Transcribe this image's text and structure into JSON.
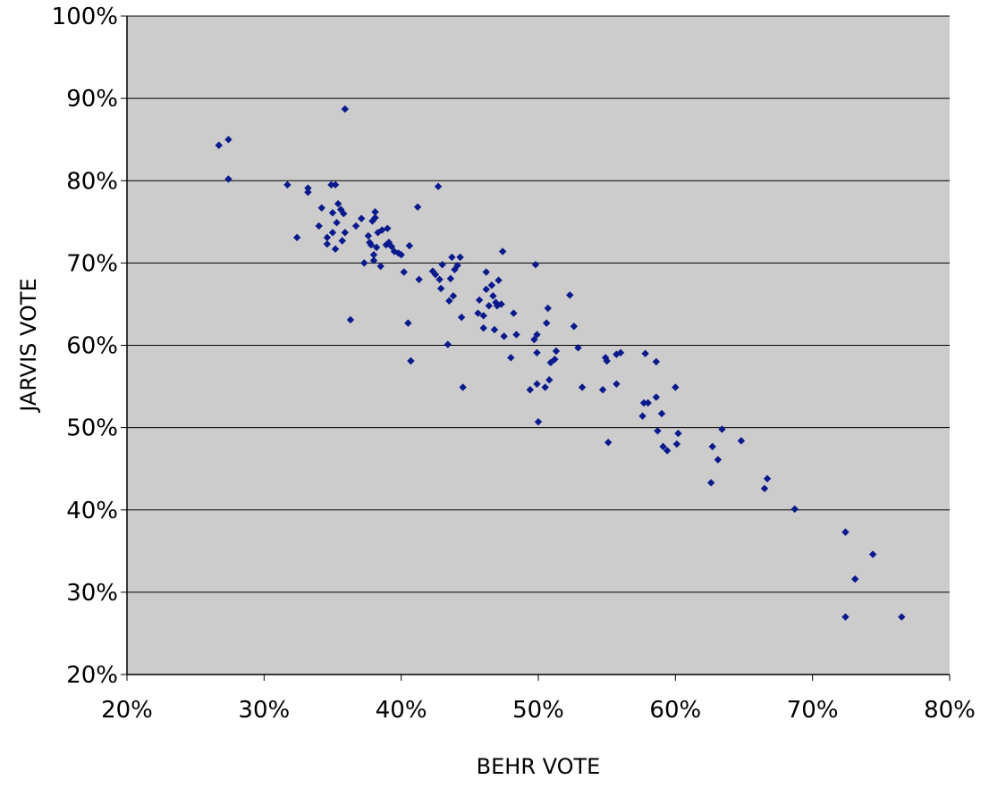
{
  "chart_data": {
    "type": "scatter",
    "title": "",
    "xlabel": "BEHR VOTE",
    "ylabel": "JARVIS VOTE",
    "xlim": [
      0.2,
      0.8
    ],
    "ylim": [
      0.2,
      1.0
    ],
    "x_ticks": [
      "20%",
      "30%",
      "40%",
      "50%",
      "60%",
      "70%",
      "80%"
    ],
    "y_ticks": [
      "20%",
      "30%",
      "40%",
      "50%",
      "60%",
      "70%",
      "80%",
      "90%",
      "100%"
    ],
    "grid": "horizontal",
    "legend": "none",
    "colors": {
      "marker": "#0a1a8c",
      "plot_background": "#cccccc",
      "gridline": "#000000"
    },
    "series": [
      {
        "points": [
          [
            0.267,
            0.843
          ],
          [
            0.274,
            0.85
          ],
          [
            0.274,
            0.802
          ],
          [
            0.359,
            0.887
          ],
          [
            0.317,
            0.795
          ],
          [
            0.332,
            0.791
          ],
          [
            0.332,
            0.786
          ],
          [
            0.349,
            0.795
          ],
          [
            0.352,
            0.795
          ],
          [
            0.324,
            0.731
          ],
          [
            0.34,
            0.745
          ],
          [
            0.342,
            0.767
          ],
          [
            0.346,
            0.731
          ],
          [
            0.346,
            0.723
          ],
          [
            0.35,
            0.737
          ],
          [
            0.35,
            0.761
          ],
          [
            0.352,
            0.717
          ],
          [
            0.353,
            0.749
          ],
          [
            0.354,
            0.772
          ],
          [
            0.356,
            0.765
          ],
          [
            0.357,
            0.727
          ],
          [
            0.358,
            0.76
          ],
          [
            0.359,
            0.737
          ],
          [
            0.367,
            0.745
          ],
          [
            0.371,
            0.754
          ],
          [
            0.373,
            0.7
          ],
          [
            0.376,
            0.733
          ],
          [
            0.377,
            0.725
          ],
          [
            0.378,
            0.722
          ],
          [
            0.379,
            0.751
          ],
          [
            0.38,
            0.703
          ],
          [
            0.38,
            0.71
          ],
          [
            0.381,
            0.755
          ],
          [
            0.381,
            0.762
          ],
          [
            0.382,
            0.719
          ],
          [
            0.383,
            0.737
          ],
          [
            0.385,
            0.696
          ],
          [
            0.386,
            0.74
          ],
          [
            0.389,
            0.722
          ],
          [
            0.39,
            0.742
          ],
          [
            0.391,
            0.725
          ],
          [
            0.393,
            0.72
          ],
          [
            0.395,
            0.714
          ],
          [
            0.398,
            0.712
          ],
          [
            0.4,
            0.71
          ],
          [
            0.402,
            0.689
          ],
          [
            0.405,
            0.627
          ],
          [
            0.406,
            0.721
          ],
          [
            0.407,
            0.581
          ],
          [
            0.412,
            0.768
          ],
          [
            0.413,
            0.68
          ],
          [
            0.363,
            0.631
          ],
          [
            0.423,
            0.69
          ],
          [
            0.425,
            0.686
          ],
          [
            0.427,
            0.793
          ],
          [
            0.428,
            0.68
          ],
          [
            0.429,
            0.669
          ],
          [
            0.43,
            0.698
          ],
          [
            0.434,
            0.601
          ],
          [
            0.435,
            0.654
          ],
          [
            0.436,
            0.681
          ],
          [
            0.437,
            0.707
          ],
          [
            0.438,
            0.66
          ],
          [
            0.439,
            0.692
          ],
          [
            0.441,
            0.697
          ],
          [
            0.443,
            0.707
          ],
          [
            0.444,
            0.634
          ],
          [
            0.445,
            0.549
          ],
          [
            0.456,
            0.639
          ],
          [
            0.457,
            0.655
          ],
          [
            0.46,
            0.621
          ],
          [
            0.46,
            0.636
          ],
          [
            0.462,
            0.668
          ],
          [
            0.462,
            0.689
          ],
          [
            0.464,
            0.648
          ],
          [
            0.466,
            0.673
          ],
          [
            0.467,
            0.66
          ],
          [
            0.468,
            0.619
          ],
          [
            0.469,
            0.652
          ],
          [
            0.47,
            0.648
          ],
          [
            0.471,
            0.679
          ],
          [
            0.473,
            0.65
          ],
          [
            0.474,
            0.714
          ],
          [
            0.475,
            0.611
          ],
          [
            0.48,
            0.585
          ],
          [
            0.482,
            0.639
          ],
          [
            0.484,
            0.613
          ],
          [
            0.494,
            0.546
          ],
          [
            0.497,
            0.607
          ],
          [
            0.498,
            0.698
          ],
          [
            0.499,
            0.613
          ],
          [
            0.499,
            0.591
          ],
          [
            0.499,
            0.553
          ],
          [
            0.5,
            0.507
          ],
          [
            0.505,
            0.549
          ],
          [
            0.506,
            0.627
          ],
          [
            0.507,
            0.645
          ],
          [
            0.508,
            0.558
          ],
          [
            0.509,
            0.579
          ],
          [
            0.512,
            0.583
          ],
          [
            0.513,
            0.593
          ],
          [
            0.523,
            0.661
          ],
          [
            0.526,
            0.623
          ],
          [
            0.529,
            0.597
          ],
          [
            0.532,
            0.549
          ],
          [
            0.547,
            0.546
          ],
          [
            0.549,
            0.585
          ],
          [
            0.55,
            0.581
          ],
          [
            0.551,
            0.482
          ],
          [
            0.557,
            0.553
          ],
          [
            0.557,
            0.589
          ],
          [
            0.56,
            0.591
          ],
          [
            0.576,
            0.514
          ],
          [
            0.577,
            0.53
          ],
          [
            0.578,
            0.59
          ],
          [
            0.58,
            0.53
          ],
          [
            0.586,
            0.58
          ],
          [
            0.586,
            0.537
          ],
          [
            0.587,
            0.496
          ],
          [
            0.59,
            0.517
          ],
          [
            0.591,
            0.477
          ],
          [
            0.594,
            0.472
          ],
          [
            0.6,
            0.549
          ],
          [
            0.601,
            0.48
          ],
          [
            0.602,
            0.493
          ],
          [
            0.626,
            0.433
          ],
          [
            0.627,
            0.477
          ],
          [
            0.631,
            0.461
          ],
          [
            0.634,
            0.498
          ],
          [
            0.648,
            0.484
          ],
          [
            0.665,
            0.426
          ],
          [
            0.667,
            0.438
          ],
          [
            0.687,
            0.401
          ],
          [
            0.724,
            0.373
          ],
          [
            0.724,
            0.27
          ],
          [
            0.731,
            0.316
          ],
          [
            0.744,
            0.346
          ],
          [
            0.765,
            0.27
          ]
        ]
      }
    ]
  }
}
